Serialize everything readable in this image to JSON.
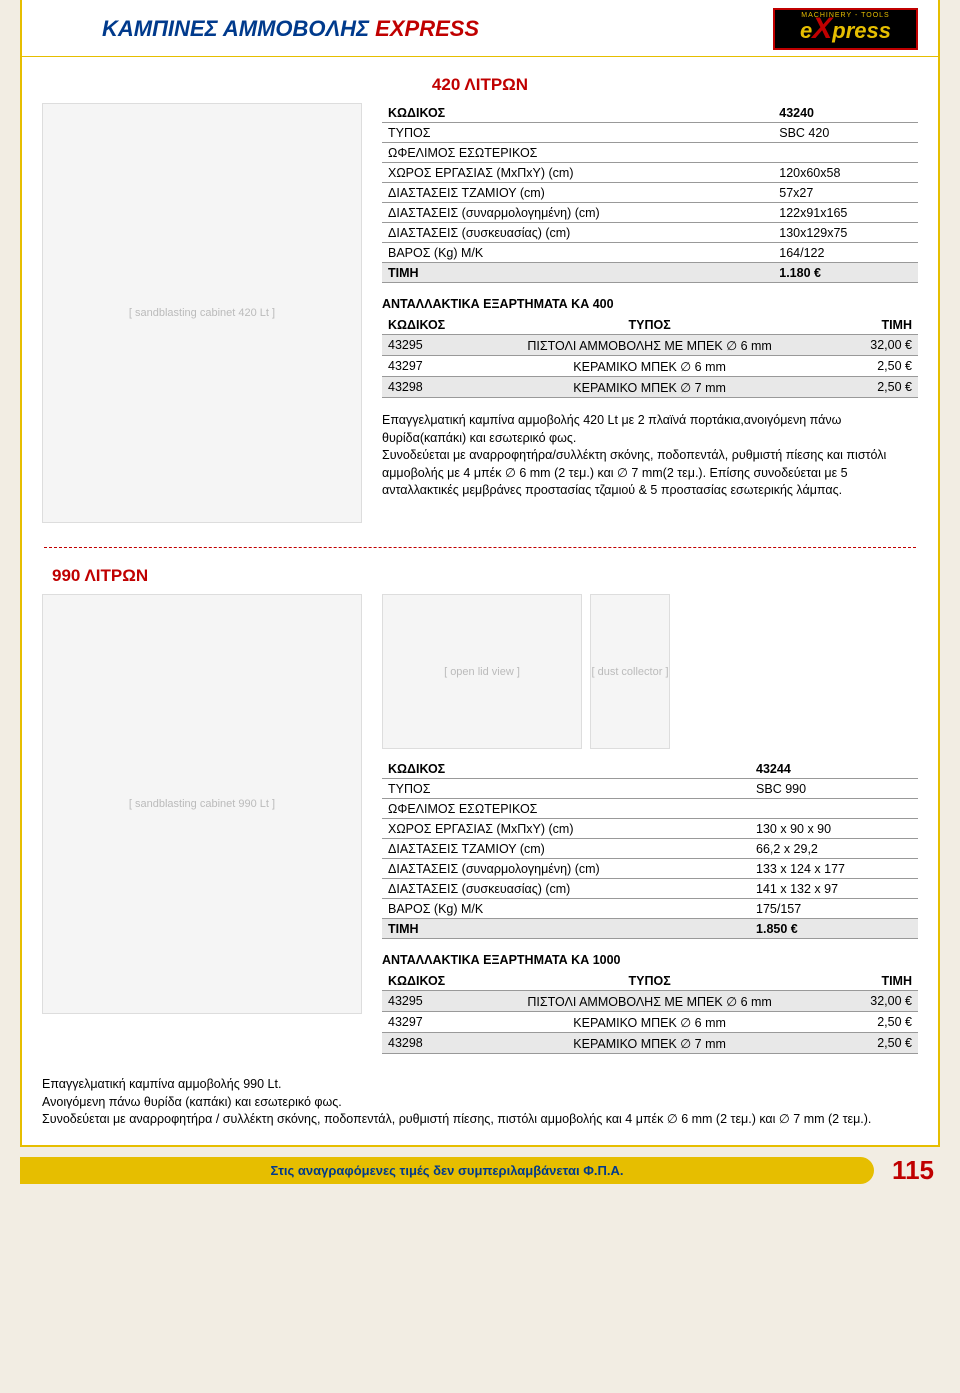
{
  "header": {
    "title_part1": "ΚΑΜΠΙΝΕΣ ΑΜΜΟΒΟΛΗΣ ",
    "title_express": "EXPRESS",
    "logo_tag": "MACHINERY - TOOLS",
    "logo_text_e": "e",
    "logo_text_x": "X",
    "logo_text_press": "press"
  },
  "p420": {
    "section_title": "420 ΛΙΤΡΩΝ",
    "spec_rows": [
      {
        "k": "ΚΩΔΙΚΟΣ",
        "v": "43240"
      },
      {
        "k": "ΤΥΠΟΣ",
        "v": "SBC 420"
      },
      {
        "k": "ΩΦΕΛΙΜΟΣ ΕΣΩΤΕΡΙΚΟΣ",
        "v": ""
      },
      {
        "k": "ΧΩΡΟΣ ΕΡΓΑΣΙΑΣ (ΜxΠxΥ) (cm)",
        "v": "120x60x58"
      },
      {
        "k": "ΔΙΑΣΤΑΣΕΙΣ ΤΖΑΜΙΟΥ (cm)",
        "v": "57x27"
      },
      {
        "k": "ΔΙΑΣΤΑΣΕΙΣ (συναρμολογημένη) (cm)",
        "v": "122x91x165"
      },
      {
        "k": "ΔΙΑΣΤΑΣΕΙΣ (συσκευασίας) (cm)",
        "v": "130x129x75"
      },
      {
        "k": "ΒΑΡΟΣ (Kg) Μ/Κ",
        "v": "164/122"
      },
      {
        "k": "ΤΙΜΗ",
        "v": "1.180 €"
      }
    ],
    "parts_title": "ΑΝΤΑΛΛΑΚΤΙΚΑ ΕΞΑΡΤΗΜΑΤΑ ΚΑ 400",
    "parts_h1": "ΚΩΔΙΚΟΣ",
    "parts_h2": "ΤΥΠΟΣ",
    "parts_h3": "ΤΙΜΗ",
    "parts_rows": [
      {
        "c": "43295",
        "t": "ΠΙΣΤΟΛΙ ΑΜΜΟΒΟΛΗΣ ΜΕ ΜΠΕΚ ∅ 6 mm",
        "p": "32,00 €"
      },
      {
        "c": "43297",
        "t": "ΚΕΡΑΜΙΚΟ ΜΠΕΚ ∅ 6 mm",
        "p": "2,50 €"
      },
      {
        "c": "43298",
        "t": "ΚΕΡΑΜΙΚΟ ΜΠΕΚ ∅ 7 mm",
        "p": "2,50 €"
      }
    ],
    "desc": "Επαγγελματική καμπίνα αμμοβολής 420 Lt με 2 πλαϊνά πορτάκια,ανοιγόμενη πάνω θυρίδα(καπάκι) και εσωτερικό φως.\nΣυνοδεύεται με αναρροφητήρα/συλλέκτη σκόνης, ποδοπεντάλ, ρυθμιστή πίεσης και πιστόλι αμμοβολής με 4 μπέκ ∅ 6 mm (2 τεμ.) και ∅ 7 mm(2 τεμ.). Επίσης συνοδεύεται με 5 ανταλλακτικές μεμβράνες προστασίας τζαμιού & 5 προστασίας εσωτερικής λάμπας."
  },
  "p990": {
    "section_title": "990 ΛΙΤΡΩΝ",
    "spec_rows": [
      {
        "k": "ΚΩΔΙΚΟΣ",
        "v": "43244"
      },
      {
        "k": "ΤΥΠΟΣ",
        "v": "SBC 990"
      },
      {
        "k": "ΩΦΕΛΙΜΟΣ ΕΣΩΤΕΡΙΚΟΣ",
        "v": ""
      },
      {
        "k": "ΧΩΡΟΣ ΕΡΓΑΣΙΑΣ (ΜxΠxΥ) (cm)",
        "v": "130 x 90 x 90"
      },
      {
        "k": "ΔΙΑΣΤΑΣΕΙΣ ΤΖΑΜΙΟΥ (cm)",
        "v": "66,2 x 29,2"
      },
      {
        "k": "ΔΙΑΣΤΑΣΕΙΣ (συναρμολογημένη) (cm)",
        "v": "133 x 124 x 177"
      },
      {
        "k": "ΔΙΑΣΤΑΣΕΙΣ (συσκευασίας) (cm)",
        "v": "141 x 132 x 97"
      },
      {
        "k": "ΒΑΡΟΣ (Kg) Μ/Κ",
        "v": "175/157"
      },
      {
        "k": "ΤΙΜΗ",
        "v": "1.850 €"
      }
    ],
    "parts_title": "ΑΝΤΑΛΛΑΚΤΙΚΑ ΕΞΑΡΤΗΜΑΤΑ ΚΑ 1000",
    "parts_h1": "ΚΩΔΙΚΟΣ",
    "parts_h2": "ΤΥΠΟΣ",
    "parts_h3": "ΤΙΜΗ",
    "parts_rows": [
      {
        "c": "43295",
        "t": "ΠΙΣΤΟΛΙ ΑΜΜΟΒΟΛΗΣ ΜΕ ΜΠΕΚ ∅ 6 mm",
        "p": "32,00 €"
      },
      {
        "c": "43297",
        "t": "ΚΕΡΑΜΙΚΟ ΜΠΕΚ ∅ 6 mm",
        "p": "2,50 €"
      },
      {
        "c": "43298",
        "t": "ΚΕΡΑΜΙΚΟ ΜΠΕΚ ∅ 7 mm",
        "p": "2,50 €"
      }
    ],
    "desc": "Επαγγελματική καμπίνα αμμοβολής 990 Lt.\nΑνοιγόμενη πάνω θυρίδα (καπάκι) και εσωτερικό φως.\nΣυνοδεύεται με αναρροφητήρα / συλλέκτη σκόνης, ποδοπεντάλ, ρυθμιστή πίεσης, πιστόλι αμμοβολής και 4 μπέκ ∅ 6 mm (2 τεμ.) και ∅ 7 mm (2 τεμ.)."
  },
  "footer": {
    "note": "Στις αναγραφόμενες τιμές δεν συμπεριλαμβάνεται Φ.Π.Α.",
    "page": "115"
  }
}
